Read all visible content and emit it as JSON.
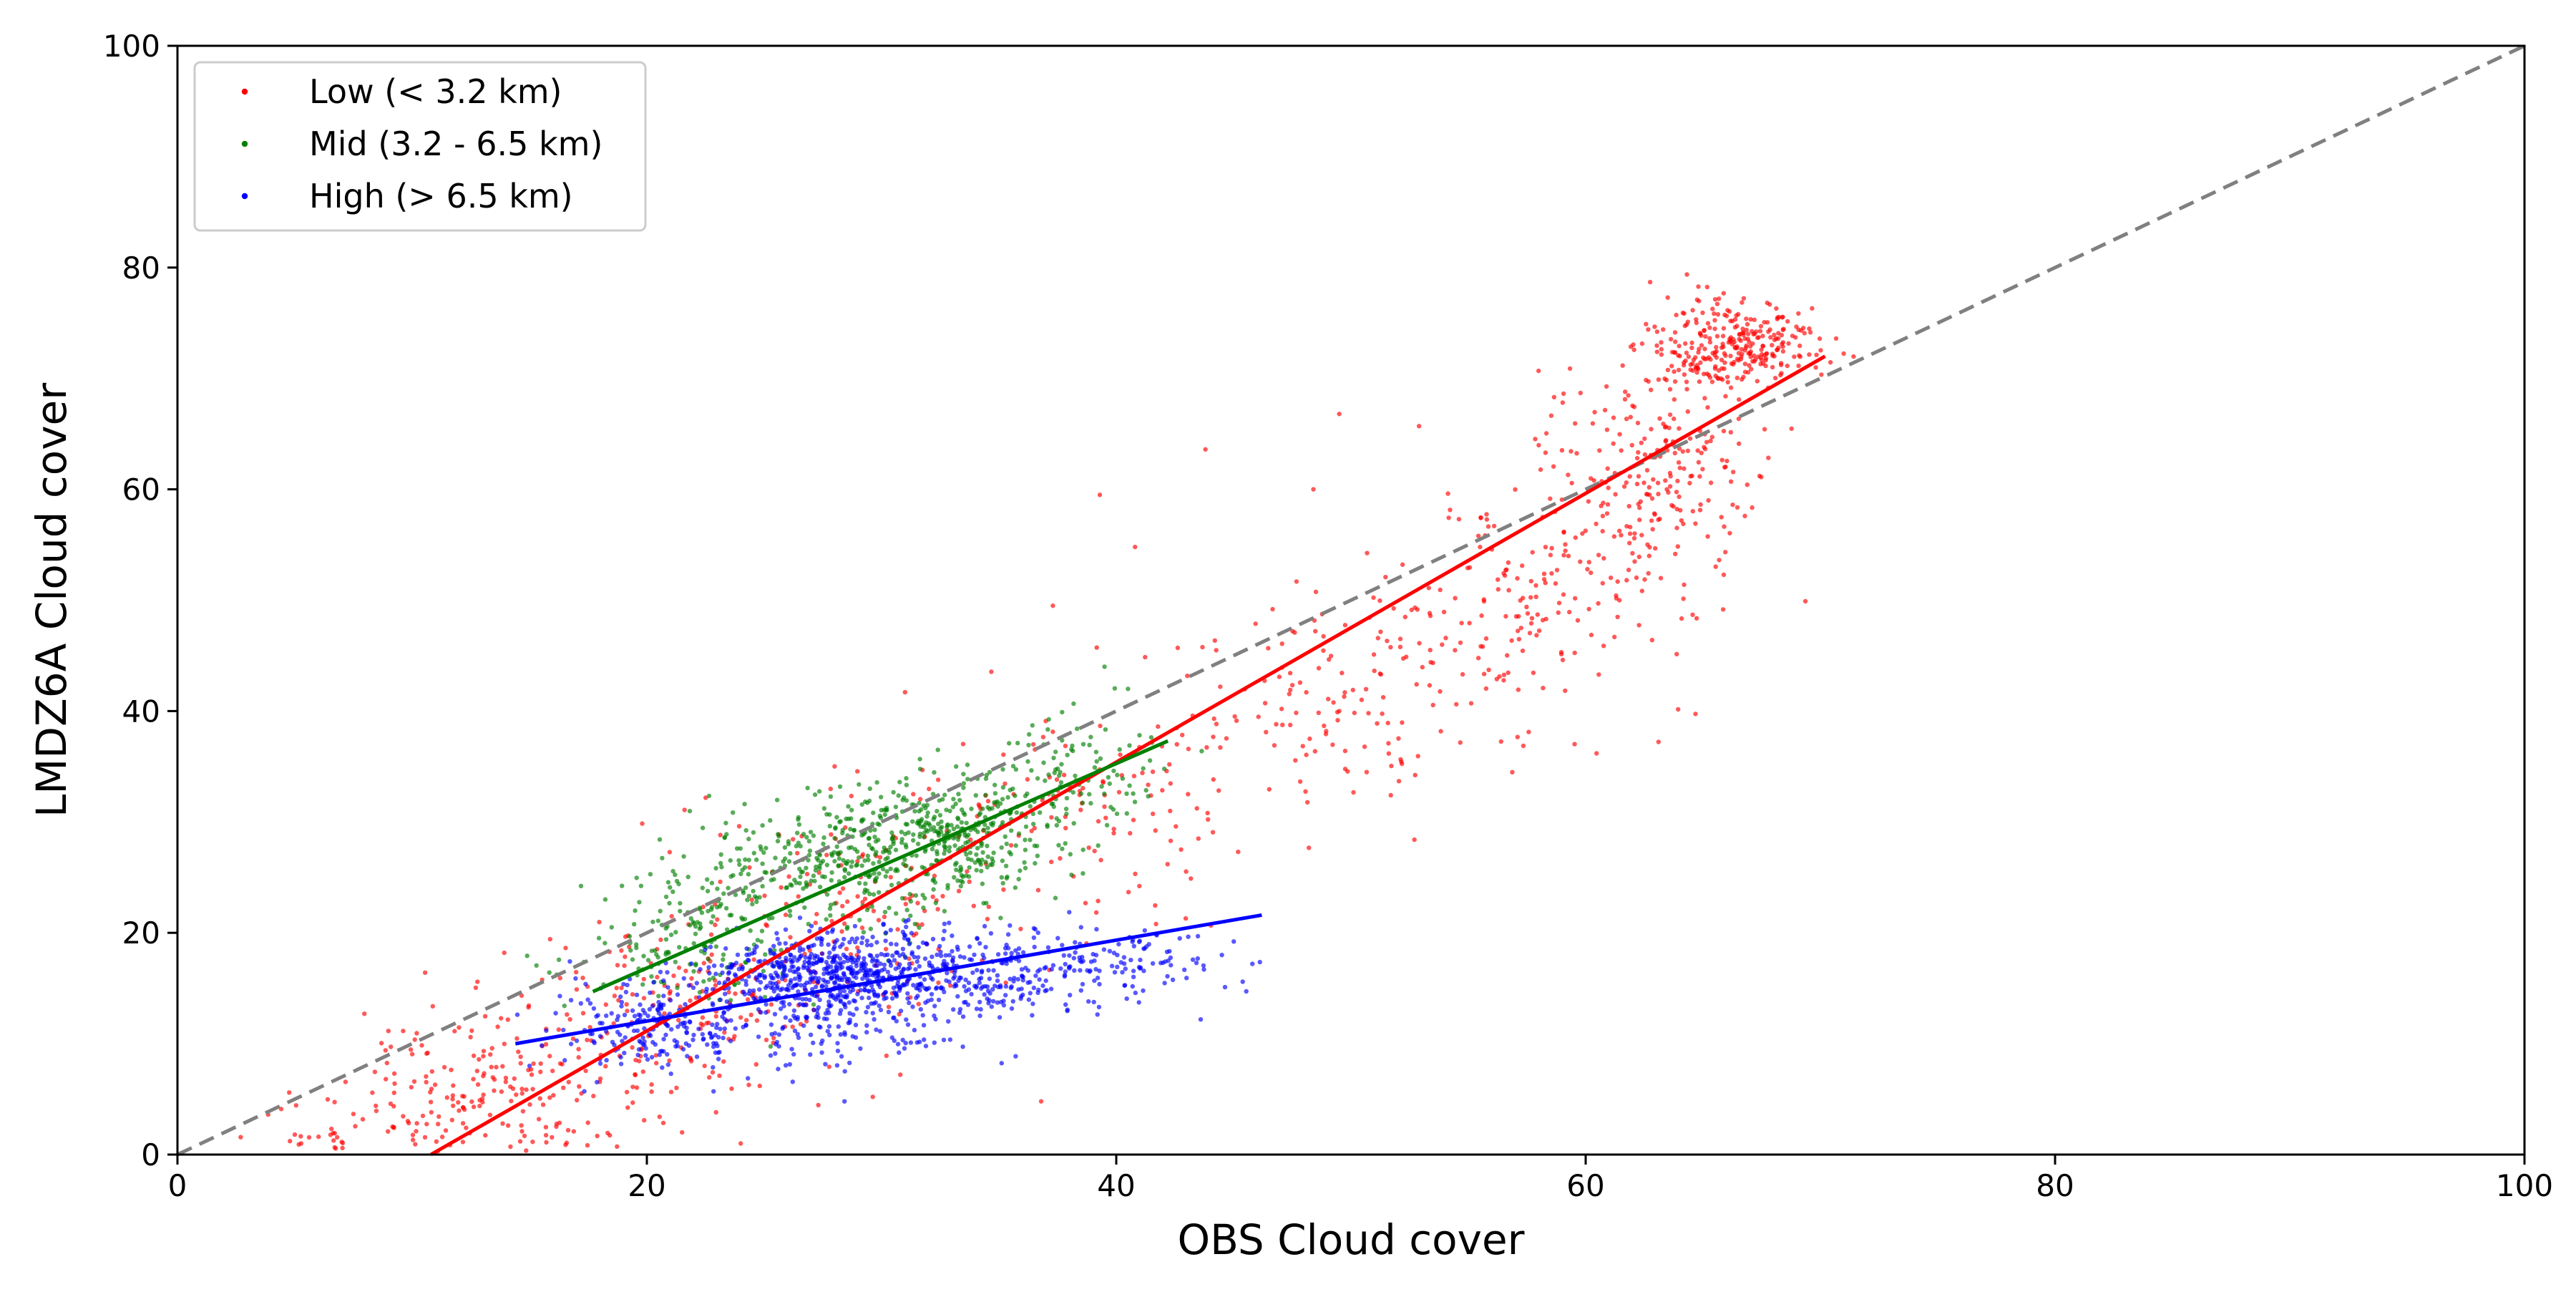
{
  "chart_data": {
    "type": "scatter",
    "xlabel": "OBS Cloud cover",
    "ylabel": "LMDZ6A Cloud cover",
    "xlim": [
      0,
      100
    ],
    "ylim": [
      0,
      100
    ],
    "xticks": [
      "0",
      "20",
      "40",
      "60",
      "80",
      "100"
    ],
    "yticks": [
      "0",
      "20",
      "40",
      "60",
      "80",
      "100"
    ],
    "grid": false,
    "legend_position": "top-left",
    "reference_line": {
      "type": "1:1",
      "style": "dashed",
      "color": "#808080",
      "x": [
        0,
        100
      ],
      "y": [
        0,
        100
      ]
    },
    "series": [
      {
        "name": "Low (< 3.2 km)",
        "color": "#ff0000",
        "fit_line": {
          "x": [
            10.8,
            70.2
          ],
          "y": [
            0,
            72.0
          ]
        },
        "clusters": [
          {
            "center": [
              9.0,
              3.0
            ],
            "spread": [
              2.5,
              2.0
            ],
            "n": 60,
            "seed": 11
          },
          {
            "center": [
              14.5,
              6.5
            ],
            "spread": [
              3.2,
              3.5
            ],
            "n": 180,
            "seed": 12
          },
          {
            "center": [
              22.0,
              14.0
            ],
            "spread": [
              3.5,
              4.0
            ],
            "n": 160,
            "seed": 13
          },
          {
            "center": [
              30.0,
              23.0
            ],
            "spread": [
              3.5,
              5.5
            ],
            "n": 140,
            "seed": 14
          },
          {
            "center": [
              40.0,
              32.0
            ],
            "spread": [
              3.5,
              5.0
            ],
            "n": 110,
            "seed": 15
          },
          {
            "center": [
              50.0,
              41.0
            ],
            "spread": [
              3.5,
              5.0
            ],
            "n": 140,
            "seed": 16
          },
          {
            "center": [
              57.5,
              50.0
            ],
            "spread": [
              3.0,
              5.0
            ],
            "n": 150,
            "seed": 17
          },
          {
            "center": [
              63.0,
              62.0
            ],
            "spread": [
              2.2,
              6.0
            ],
            "n": 240,
            "seed": 18
          },
          {
            "center": [
              66.5,
              73.0
            ],
            "spread": [
              1.8,
              2.0
            ],
            "n": 280,
            "seed": 19
          }
        ],
        "outliers": [
          [
            39.3,
            59.5
          ],
          [
            43.8,
            63.6
          ],
          [
            49.5,
            66.8
          ],
          [
            52.9,
            65.7
          ],
          [
            48.4,
            60.0
          ],
          [
            40.8,
            54.8
          ],
          [
            37.3,
            49.5
          ],
          [
            31.0,
            41.7
          ],
          [
            36.8,
            4.8
          ],
          [
            21.5,
            2.0
          ],
          [
            24.0,
            1.0
          ],
          [
            5.0,
            1.8
          ],
          [
            30.8,
            7.2
          ],
          [
            43.5,
            28.5
          ]
        ]
      },
      {
        "name": "Mid (3.2 - 6.5 km)",
        "color": "#008000",
        "fit_line": {
          "x": [
            17.7,
            42.2
          ],
          "y": [
            14.7,
            37.3
          ]
        },
        "clusters": [
          {
            "center": [
              22.0,
              19.0
            ],
            "spread": [
              2.3,
              3.0
            ],
            "n": 150,
            "seed": 21
          },
          {
            "center": [
              27.0,
              26.0
            ],
            "spread": [
              2.5,
              3.0
            ],
            "n": 260,
            "seed": 22
          },
          {
            "center": [
              32.5,
              28.5
            ],
            "spread": [
              2.2,
              2.6
            ],
            "n": 380,
            "seed": 23
          },
          {
            "center": [
              37.5,
              33.5
            ],
            "spread": [
              2.0,
              3.5
            ],
            "n": 120,
            "seed": 24
          }
        ],
        "outliers": [
          [
            19.5,
            22.0
          ],
          [
            18.5,
            20.5
          ],
          [
            39.5,
            44.0
          ],
          [
            40.5,
            42.0
          ]
        ]
      },
      {
        "name": "High (> 6.5 km)",
        "color": "#0000ff",
        "fit_line": {
          "x": [
            14.4,
            46.2
          ],
          "y": [
            10.0,
            21.6
          ]
        },
        "clusters": [
          {
            "center": [
              20.0,
              11.5
            ],
            "spread": [
              2.0,
              2.0
            ],
            "n": 170,
            "seed": 31
          },
          {
            "center": [
              27.5,
              16.5
            ],
            "spread": [
              2.5,
              1.8
            ],
            "n": 520,
            "seed": 32
          },
          {
            "center": [
              27.0,
              12.5
            ],
            "spread": [
              3.5,
              2.5
            ],
            "n": 220,
            "seed": 33
          },
          {
            "center": [
              34.0,
              16.0
            ],
            "spread": [
              2.8,
              2.0
            ],
            "n": 260,
            "seed": 34
          },
          {
            "center": [
              40.5,
              17.5
            ],
            "spread": [
              2.5,
              1.8
            ],
            "n": 100,
            "seed": 35
          }
        ],
        "outliers": [
          [
            45.8,
            17.2
          ],
          [
            44.5,
            18.0
          ],
          [
            15.0,
            8.0
          ],
          [
            16.5,
            8.5
          ],
          [
            38.5,
            20.5
          ]
        ]
      }
    ]
  }
}
